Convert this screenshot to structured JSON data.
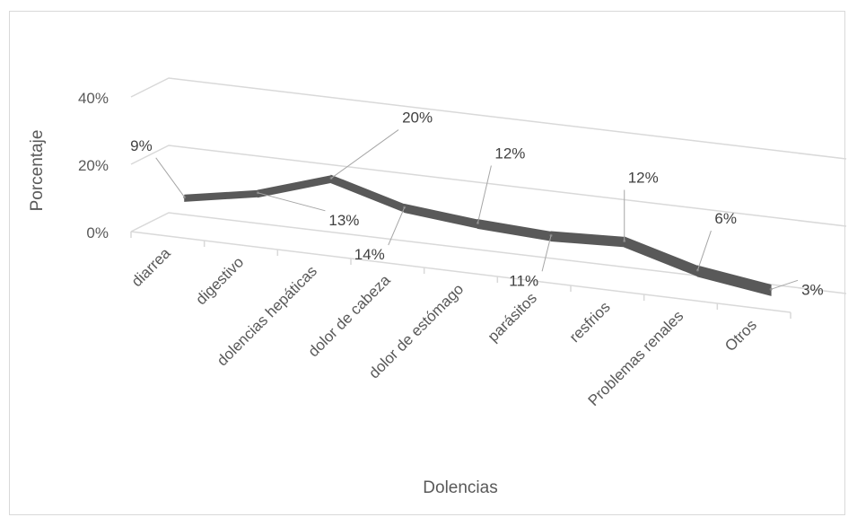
{
  "chart_data": {
    "type": "line",
    "style": "3d-line",
    "categories": [
      "diarrea",
      "digestivo",
      "dolencias hepáticas",
      "dolor de cabeza",
      "dolor de estómago",
      "parásitos",
      "resfrios",
      "Problemas renales",
      "Otros"
    ],
    "values": [
      9,
      13,
      20,
      14,
      12,
      11,
      12,
      6,
      3
    ],
    "data_labels": [
      "9%",
      "13%",
      "20%",
      "14%",
      "12%",
      "11%",
      "12%",
      "6%",
      "3%"
    ],
    "xlabel": "Dolencias",
    "ylabel": "Porcentaje",
    "y_ticks": [
      "0%",
      "20%",
      "40%"
    ],
    "ylim": [
      0,
      40
    ],
    "grid": true,
    "legend": "none",
    "colors": {
      "line": "#595959",
      "line_top": "#7f7f7f",
      "grid": "#d9d9d9",
      "text": "#595959"
    }
  }
}
